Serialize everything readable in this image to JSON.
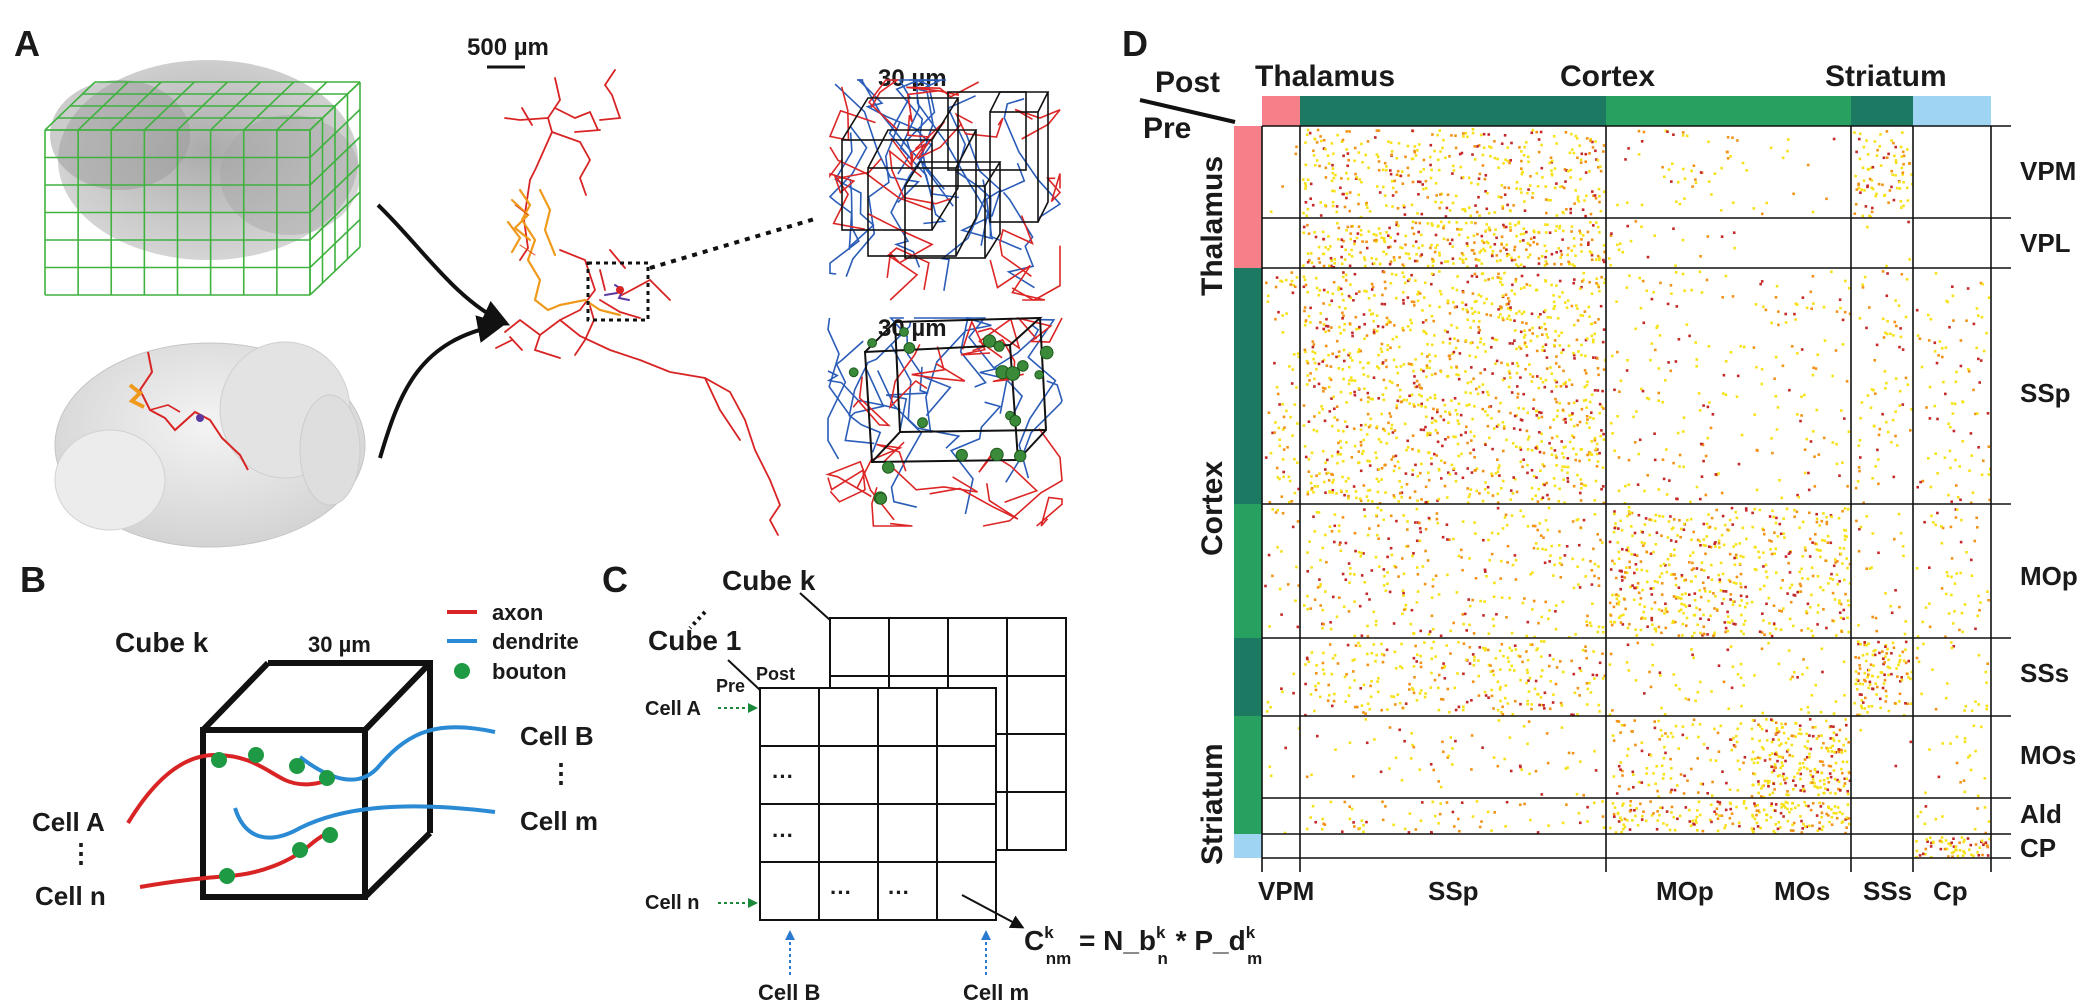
{
  "panels": {
    "a": "A",
    "b": "B",
    "c": "C",
    "d": "D"
  },
  "panel_a": {
    "scale_top": "500 µm",
    "scale_zoom_1": "30 µm",
    "scale_zoom_2": "30 µm"
  },
  "panel_b": {
    "cube_title": "Cube k",
    "cube_size": "30 µm",
    "legend": {
      "axon": "axon",
      "dendrite": "dendrite",
      "bouton": "bouton"
    },
    "cell_a": "Cell A",
    "cell_n": "Cell n",
    "cell_b": "Cell B",
    "cell_m": "Cell m",
    "vdots": "⋮"
  },
  "panel_c": {
    "cube_k": "Cube k",
    "cube_1": "Cube 1",
    "post": "Post",
    "pre": "Pre",
    "cell_a": "Cell A",
    "cell_n": "Cell n",
    "cell_b": "Cell B",
    "cell_m": "Cell m",
    "dots": "···",
    "formula": {
      "c": "C",
      "sup_k1": "k",
      "sub_nm": "nm",
      "eq": " = N_b",
      "sup_k2": "k",
      "sub_n": "n",
      "mult": " * P_d",
      "sup_k3": "k",
      "sub_m": "m"
    }
  },
  "panel_d": {
    "post_label": "Post",
    "pre_label": "Pre",
    "top_groups": [
      "Thalamus",
      "Cortex",
      "Striatum"
    ],
    "left_groups": [
      "Thalamus",
      "Cortex",
      "Striatum"
    ],
    "row_labels": [
      "VPM",
      "VPL",
      "SSp",
      "MOp",
      "SSs",
      "MOs",
      "Ald",
      "CP"
    ],
    "col_labels": [
      "VPM",
      "SSp",
      "MOp",
      "MOs",
      "SSs",
      "Cp"
    ],
    "colors": {
      "thalamus": "#f6808a",
      "cortex_dark": "#1c7a62",
      "cortex_light": "#27a060",
      "striatum": "#9fd5f3",
      "dot_high": "#c62828",
      "dot_mid": "#f29318",
      "dot_low": "#f7e21a"
    }
  }
}
